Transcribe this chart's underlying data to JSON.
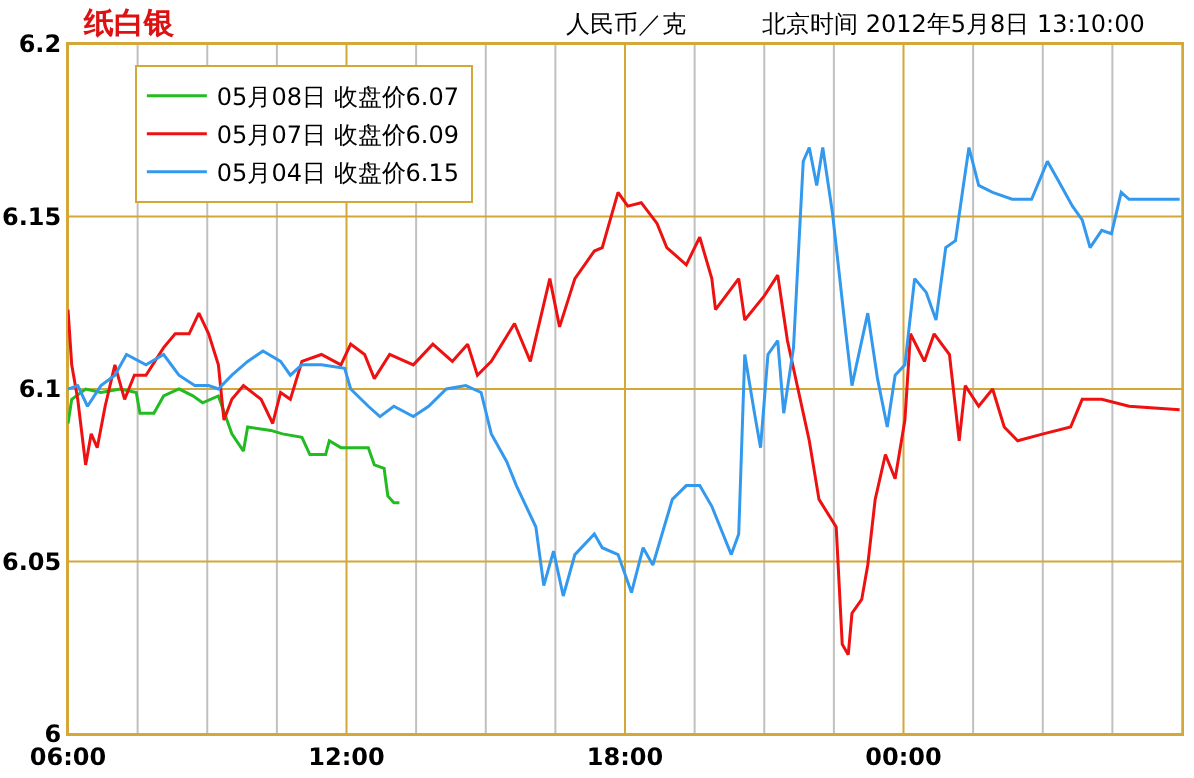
{
  "chart_data": {
    "type": "line",
    "title": "纸白银",
    "ylabel": "人民币／克",
    "annotations": [
      "北京时间 2012年5月8日 13:10:00"
    ],
    "xlim": [
      6,
      30
    ],
    "xticks": [
      {
        "value": 6,
        "label": "06:00"
      },
      {
        "value": 7.5,
        "label": null
      },
      {
        "value": 9,
        "label": null
      },
      {
        "value": 10.5,
        "label": null
      },
      {
        "value": 12,
        "label": "12:00"
      },
      {
        "value": 13.5,
        "label": null
      },
      {
        "value": 15,
        "label": null
      },
      {
        "value": 16.5,
        "label": null
      },
      {
        "value": 18,
        "label": "18:00"
      },
      {
        "value": 19.5,
        "label": null
      },
      {
        "value": 21,
        "label": null
      },
      {
        "value": 22.5,
        "label": null
      },
      {
        "value": 24,
        "label": "00:00"
      },
      {
        "value": 25.5,
        "label": null
      },
      {
        "value": 27,
        "label": null
      },
      {
        "value": 28.5,
        "label": null
      },
      {
        "value": 30,
        "label": null
      }
    ],
    "ylim": [
      6,
      6.2
    ],
    "yticks": [
      6,
      6.05,
      6.1,
      6.15,
      6.2
    ],
    "grid": true,
    "legend": "top left",
    "marker": "none",
    "line_style": "solid",
    "series": [
      {
        "name": "05月08日 收盘价6.07",
        "color": "#22bb22",
        "x": [
          6.0,
          6.08,
          6.38,
          6.71,
          7.13,
          7.47,
          7.55,
          7.85,
          8.06,
          8.39,
          8.69,
          8.9,
          9.24,
          9.53,
          9.78,
          9.87,
          10.37,
          10.62,
          11.04,
          11.21,
          11.55,
          11.63,
          11.88,
          12.05,
          12.18,
          12.47,
          12.6,
          12.81,
          12.89,
          13.02,
          13.14
        ],
        "values": [
          6.09,
          6.097,
          6.1,
          6.099,
          6.1,
          6.099,
          6.093,
          6.093,
          6.098,
          6.1,
          6.098,
          6.096,
          6.098,
          6.087,
          6.082,
          6.089,
          6.088,
          6.087,
          6.086,
          6.081,
          6.081,
          6.085,
          6.083,
          6.083,
          6.083,
          6.083,
          6.078,
          6.077,
          6.069,
          6.067,
          6.067
        ]
      },
      {
        "name": "05月07日 收盘价6.09",
        "color": "#ee1111",
        "x": [
          6.0,
          6.08,
          6.21,
          6.38,
          6.5,
          6.63,
          6.8,
          7.01,
          7.22,
          7.43,
          7.68,
          8.06,
          8.31,
          8.61,
          8.82,
          9.03,
          9.24,
          9.36,
          9.53,
          9.78,
          10.16,
          10.41,
          10.58,
          10.79,
          11.04,
          11.46,
          11.88,
          12.09,
          12.39,
          12.6,
          12.93,
          13.44,
          13.86,
          14.28,
          14.61,
          14.82,
          15.12,
          15.62,
          15.96,
          16.38,
          16.59,
          16.92,
          17.34,
          17.51,
          17.85,
          18.06,
          18.35,
          18.69,
          18.9,
          19.32,
          19.61,
          19.87,
          19.95,
          20.45,
          20.58,
          21.0,
          21.29,
          21.5,
          21.97,
          22.18,
          22.55,
          22.68,
          22.81,
          22.89,
          23.1,
          23.23,
          23.39,
          23.61,
          23.82,
          24.03,
          24.15,
          24.45,
          24.66,
          24.99,
          25.2,
          25.33,
          25.62,
          25.92,
          26.17,
          26.46,
          27.01,
          27.6,
          27.85,
          28.27,
          28.86,
          29.95
        ],
        "values": [
          6.123,
          6.107,
          6.097,
          6.078,
          6.087,
          6.083,
          6.095,
          6.107,
          6.097,
          6.104,
          6.104,
          6.112,
          6.116,
          6.116,
          6.122,
          6.116,
          6.107,
          6.091,
          6.097,
          6.101,
          6.097,
          6.09,
          6.099,
          6.097,
          6.108,
          6.11,
          6.107,
          6.113,
          6.11,
          6.103,
          6.11,
          6.107,
          6.113,
          6.108,
          6.113,
          6.104,
          6.108,
          6.119,
          6.108,
          6.132,
          6.118,
          6.132,
          6.14,
          6.141,
          6.157,
          6.153,
          6.154,
          6.148,
          6.141,
          6.136,
          6.144,
          6.132,
          6.123,
          6.132,
          6.12,
          6.127,
          6.133,
          6.114,
          6.085,
          6.068,
          6.06,
          6.026,
          6.023,
          6.035,
          6.039,
          6.049,
          6.068,
          6.081,
          6.074,
          6.091,
          6.116,
          6.108,
          6.116,
          6.11,
          6.085,
          6.101,
          6.095,
          6.1,
          6.089,
          6.085,
          6.087,
          6.089,
          6.097,
          6.097,
          6.095,
          6.094
        ]
      },
      {
        "name": "05月04日 收盘价6.15",
        "color": "#3399ee",
        "x": [
          6.0,
          6.21,
          6.42,
          6.71,
          7.01,
          7.26,
          7.68,
          8.06,
          8.39,
          8.73,
          9.03,
          9.24,
          9.53,
          9.87,
          10.2,
          10.58,
          10.79,
          11.04,
          11.46,
          11.96,
          12.09,
          12.47,
          12.72,
          13.02,
          13.44,
          13.77,
          14.15,
          14.57,
          14.9,
          15.12,
          15.45,
          15.66,
          16.08,
          16.25,
          16.46,
          16.67,
          16.92,
          17.34,
          17.51,
          17.85,
          18.14,
          18.39,
          18.6,
          19.02,
          19.32,
          19.61,
          19.87,
          20.08,
          20.29,
          20.45,
          20.58,
          20.79,
          20.92,
          21.08,
          21.29,
          21.42,
          21.63,
          21.84,
          21.97,
          22.13,
          22.26,
          22.47,
          22.76,
          22.89,
          23.23,
          23.44,
          23.65,
          23.82,
          24.03,
          24.24,
          24.49,
          24.7,
          24.91,
          25.12,
          25.29,
          25.41,
          25.62,
          25.92,
          26.34,
          26.76,
          27.1,
          27.31,
          27.64,
          27.85,
          28.02,
          28.27,
          28.48,
          28.69,
          28.86,
          29.95
        ],
        "values": [
          6.1,
          6.101,
          6.095,
          6.101,
          6.104,
          6.11,
          6.107,
          6.11,
          6.104,
          6.101,
          6.101,
          6.1,
          6.104,
          6.108,
          6.111,
          6.108,
          6.104,
          6.107,
          6.107,
          6.106,
          6.1,
          6.095,
          6.092,
          6.095,
          6.092,
          6.095,
          6.1,
          6.101,
          6.099,
          6.087,
          6.079,
          6.072,
          6.06,
          6.043,
          6.053,
          6.04,
          6.052,
          6.058,
          6.054,
          6.052,
          6.041,
          6.054,
          6.049,
          6.068,
          6.072,
          6.072,
          6.066,
          6.059,
          6.052,
          6.058,
          6.11,
          6.093,
          6.083,
          6.11,
          6.114,
          6.093,
          6.112,
          6.166,
          6.17,
          6.159,
          6.17,
          6.151,
          6.116,
          6.101,
          6.122,
          6.103,
          6.089,
          6.104,
          6.107,
          6.132,
          6.128,
          6.12,
          6.141,
          6.143,
          6.159,
          6.17,
          6.159,
          6.157,
          6.155,
          6.155,
          6.166,
          6.161,
          6.153,
          6.149,
          6.141,
          6.146,
          6.145,
          6.157,
          6.155,
          6.155
        ]
      }
    ]
  }
}
